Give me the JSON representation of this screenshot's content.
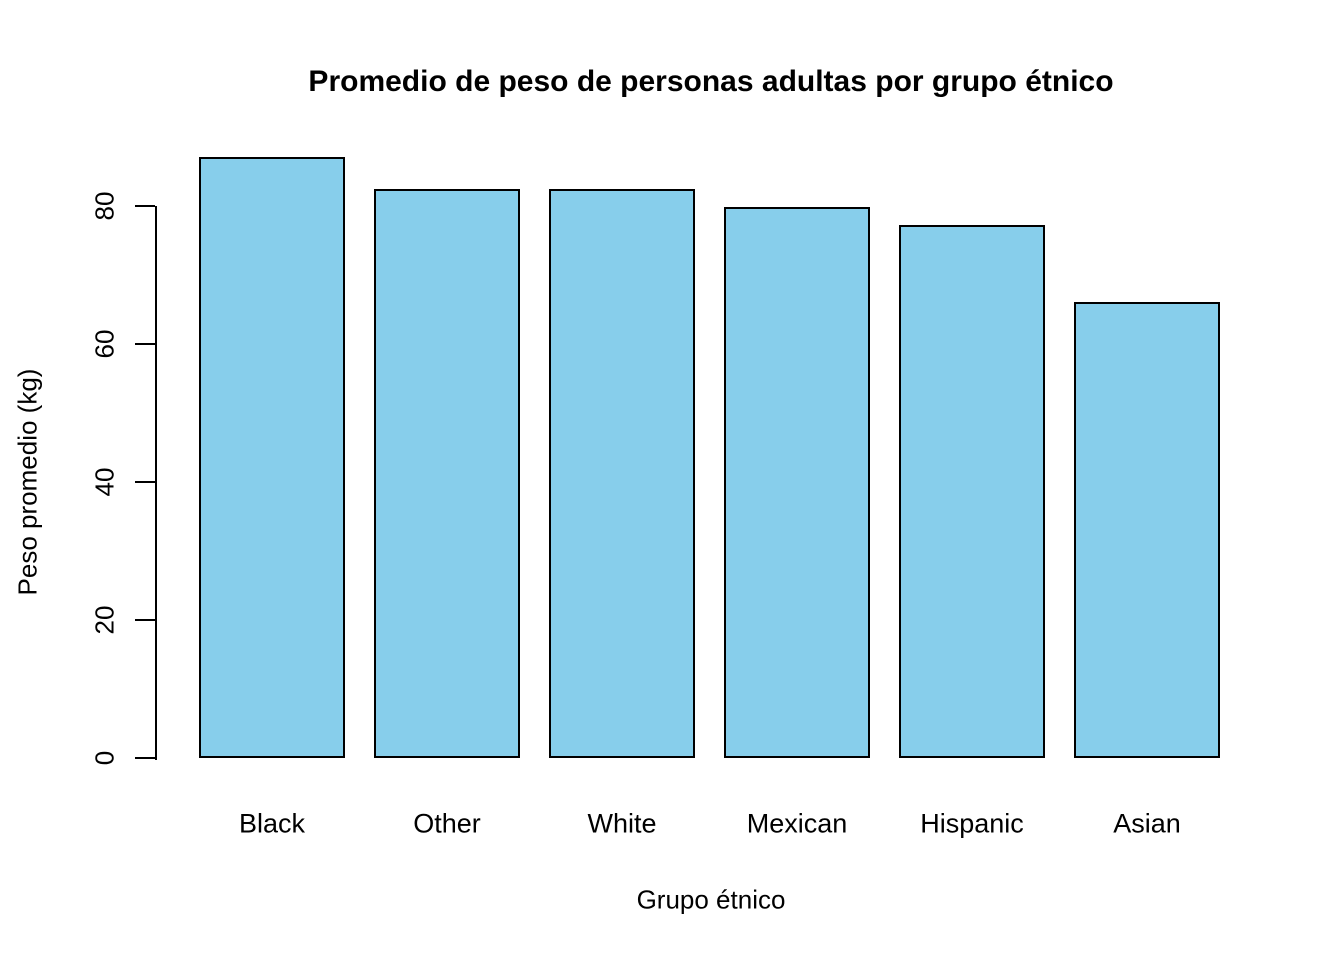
{
  "chart_data": {
    "type": "bar",
    "title": "Promedio de peso de personas adultas por grupo étnico",
    "xlabel": "Grupo étnico",
    "ylabel": "Peso promedio (kg)",
    "categories": [
      "Black",
      "Other",
      "White",
      "Mexican",
      "Hispanic",
      "Asian"
    ],
    "values": [
      87.1,
      82.5,
      82.4,
      79.9,
      77.2,
      66.1
    ],
    "yticks": [
      0,
      20,
      40,
      60,
      80
    ],
    "ylim": [
      0,
      88
    ],
    "grid": false,
    "legend": false,
    "bar_fill": "#87CEEB",
    "bar_border": "#000000",
    "background": "#FFFFFF"
  }
}
